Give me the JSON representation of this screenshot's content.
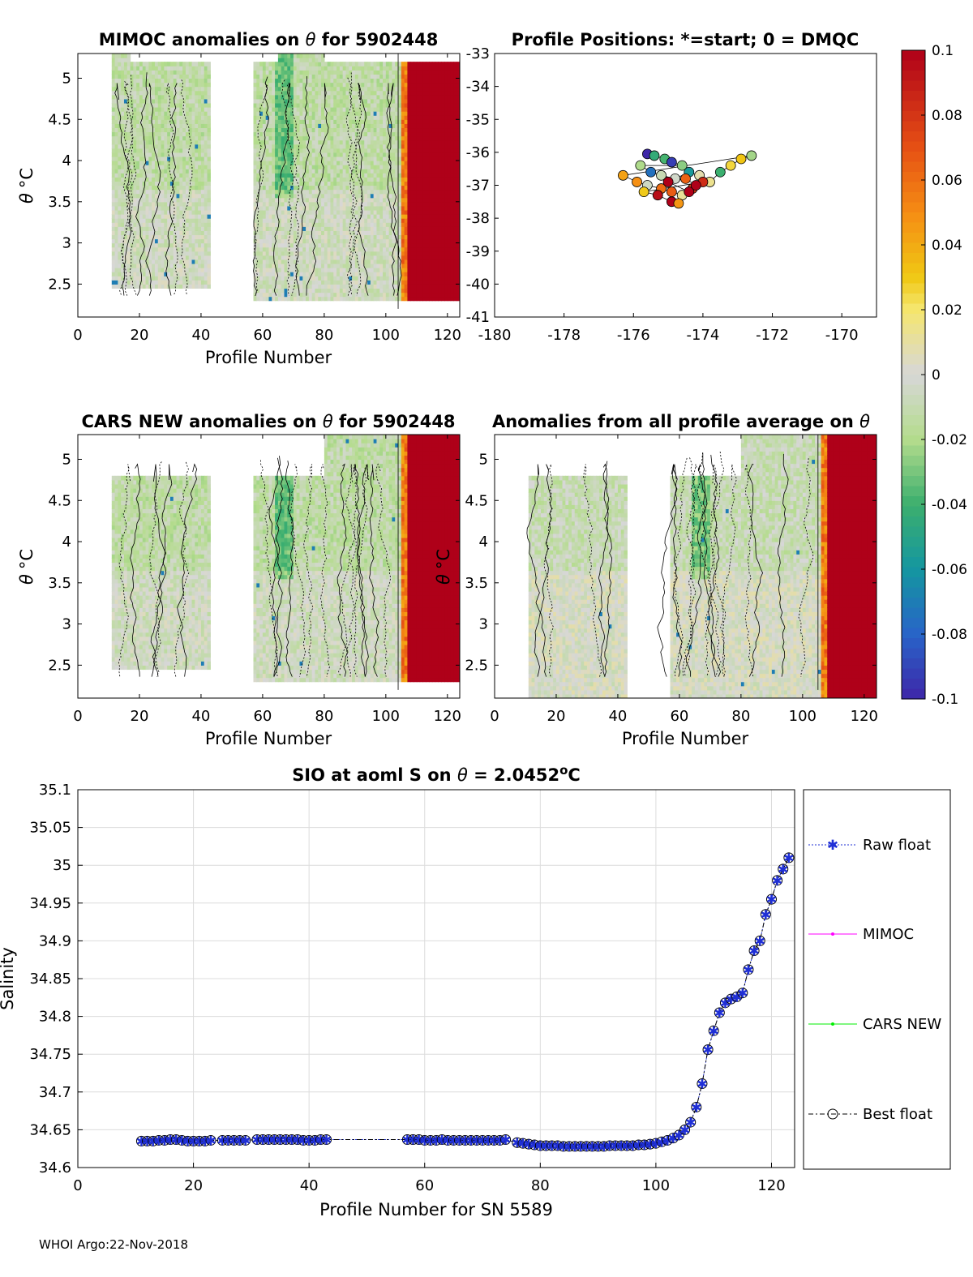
{
  "figure": {
    "footer": "WHOI Argo:22-Nov-2018",
    "colors": {
      "contour_line": "#000000",
      "raw_float": "#1f2fd6",
      "mimoc": "#ff00ff",
      "cars_new": "#00ee00",
      "best_float": "#000000",
      "grid": "#dcdcdc"
    }
  },
  "panels": {
    "mimoc": {
      "title_prefix": "MIMOC anomalies on ",
      "title_suffix": "  for 5902448",
      "xlabel": "Profile Number",
      "ylabel_theta": "θ",
      "ylabel_unit": "°C",
      "xticks": [
        "0",
        "20",
        "40",
        "60",
        "80",
        "100",
        "120"
      ],
      "yticks": [
        "5",
        "4.5",
        "4",
        "3.5",
        "3",
        "2.5"
      ]
    },
    "positions": {
      "title": "Profile Positions: *=start; 0 = DMQC",
      "xticks": [
        "-180",
        "-178",
        "-176",
        "-174",
        "-172",
        "-170"
      ],
      "yticks": [
        "-33",
        "-34",
        "-35",
        "-36",
        "-37",
        "-38",
        "-39",
        "-40",
        "-41"
      ]
    },
    "cars": {
      "title_prefix": "CARS NEW anomalies on ",
      "title_suffix": " for 5902448",
      "xlabel": "Profile Number",
      "ylabel_theta": "θ",
      "ylabel_unit": "°C",
      "xticks": [
        "0",
        "20",
        "40",
        "60",
        "80",
        "100",
        "120"
      ],
      "yticks": [
        "5",
        "4.5",
        "4",
        "3.5",
        "3",
        "2.5"
      ]
    },
    "allavg": {
      "title_prefix": "Anomalies from all profile average on ",
      "title_suffix": "",
      "xlabel": "Profile Number",
      "ylabel_theta": "θ",
      "ylabel_unit": "°C",
      "xticks": [
        "0",
        "20",
        "40",
        "60",
        "80",
        "100",
        "120"
      ],
      "yticks": [
        "5",
        "4.5",
        "4",
        "3.5",
        "3",
        "2.5"
      ]
    },
    "colorbar": {
      "ticks": [
        "0.1",
        "0.08",
        "0.06",
        "0.04",
        "0.02",
        "0",
        "-0.02",
        "-0.04",
        "-0.06",
        "-0.08",
        "-0.1"
      ]
    }
  },
  "chart_data": [
    {
      "type": "heatmap",
      "title": "MIMOC anomalies on θ  for 5902448",
      "xlabel": "Profile Number",
      "ylabel": "θ °C",
      "xlim": [
        0,
        124
      ],
      "ylim": [
        2.1,
        5.3
      ],
      "data_columns": [
        [
          11,
          43
        ],
        [
          57,
          124
        ]
      ],
      "strong_positive_from_profile": 107,
      "clim": [
        -0.1,
        0.1
      ]
    },
    {
      "type": "scatter",
      "title": "Profile Positions: *=start; 0 = DMQC",
      "xlim": [
        -180,
        -169
      ],
      "ylim": [
        -41,
        -33
      ],
      "points": [
        [
          -175.6,
          -36.05
        ],
        [
          -175.4,
          -36.1
        ],
        [
          -175.1,
          -36.2
        ],
        [
          -174.9,
          -36.3
        ],
        [
          -174.6,
          -36.4
        ],
        [
          -175.8,
          -36.4
        ],
        [
          -175.5,
          -36.6
        ],
        [
          -175.2,
          -36.7
        ],
        [
          -174.8,
          -36.8
        ],
        [
          -174.4,
          -36.6
        ],
        [
          -174.1,
          -36.7
        ],
        [
          -173.8,
          -36.9
        ],
        [
          -173.5,
          -36.6
        ],
        [
          -173.2,
          -36.4
        ],
        [
          -172.9,
          -36.2
        ],
        [
          -172.6,
          -36.1
        ],
        [
          -176.3,
          -36.7
        ],
        [
          -175.9,
          -36.9
        ],
        [
          -175.6,
          -37.0
        ],
        [
          -175.2,
          -37.1
        ],
        [
          -174.9,
          -37.2
        ],
        [
          -174.6,
          -37.3
        ],
        [
          -174.3,
          -37.1
        ],
        [
          -174.0,
          -36.9
        ],
        [
          -175.7,
          -37.2
        ],
        [
          -175.3,
          -37.3
        ],
        [
          -174.9,
          -37.5
        ],
        [
          -174.7,
          -37.55
        ],
        [
          -174.4,
          -37.2
        ],
        [
          -175.0,
          -36.9
        ],
        [
          -174.5,
          -36.8
        ],
        [
          -174.2,
          -37.0
        ]
      ]
    },
    {
      "type": "heatmap",
      "title": "CARS NEW anomalies on θ for 5902448",
      "xlabel": "Profile Number",
      "ylabel": "θ °C",
      "xlim": [
        0,
        124
      ],
      "ylim": [
        2.1,
        5.3
      ],
      "data_columns": [
        [
          11,
          43
        ],
        [
          57,
          124
        ]
      ],
      "strong_positive_from_profile": 107,
      "clim": [
        -0.1,
        0.1
      ]
    },
    {
      "type": "heatmap",
      "title": "Anomalies from all profile average on θ",
      "xlabel": "Profile Number",
      "ylabel": "θ °C",
      "xlim": [
        0,
        124
      ],
      "ylim": [
        2.1,
        5.3
      ],
      "data_columns": [
        [
          11,
          43
        ],
        [
          57,
          124
        ]
      ],
      "strong_positive_from_profile": 108,
      "clim": [
        -0.1,
        0.1
      ]
    },
    {
      "type": "line",
      "title": "SIO at aoml S on θ = 2.0452°C",
      "title_prefix": "SIO at aoml S on ",
      "title_mid": " = 2.0452",
      "title_unit": "C",
      "xlabel": "Profile Number for SN 5589",
      "ylabel": "Salinity",
      "xlim": [
        0,
        124
      ],
      "ylim": [
        34.6,
        35.1
      ],
      "xticks": [
        "0",
        "20",
        "40",
        "60",
        "80",
        "100",
        "120"
      ],
      "yticks": [
        "35.1",
        "35.05",
        "35",
        "34.95",
        "34.9",
        "34.85",
        "34.8",
        "34.75",
        "34.7",
        "34.65",
        "34.6"
      ],
      "legend": [
        "Raw float",
        "MIMOC",
        "CARS NEW",
        "Best float"
      ],
      "x": [
        11,
        12,
        13,
        14,
        15,
        16,
        17,
        18,
        19,
        20,
        21,
        22,
        23,
        25,
        26,
        27,
        28,
        29,
        31,
        32,
        33,
        34,
        35,
        36,
        37,
        38,
        39,
        40,
        41,
        42,
        43,
        57,
        58,
        59,
        60,
        61,
        62,
        63,
        64,
        65,
        66,
        67,
        68,
        69,
        70,
        71,
        72,
        73,
        74,
        76,
        77,
        78,
        79,
        80,
        81,
        82,
        83,
        84,
        85,
        86,
        87,
        88,
        89,
        90,
        91,
        92,
        93,
        94,
        95,
        96,
        97,
        98,
        99,
        100,
        101,
        102,
        103,
        104,
        105,
        106,
        107,
        108,
        109,
        110,
        111,
        112,
        113,
        114,
        115,
        116,
        117,
        118,
        119,
        120,
        121,
        122,
        123
      ],
      "series": [
        {
          "name": "Raw float",
          "values": [
            34.635,
            34.635,
            34.635,
            34.636,
            34.636,
            34.637,
            34.637,
            34.636,
            34.635,
            34.635,
            34.635,
            34.635,
            34.636,
            34.636,
            34.636,
            34.636,
            34.636,
            34.636,
            34.637,
            34.637,
            34.637,
            34.637,
            34.637,
            34.637,
            34.637,
            34.637,
            34.636,
            34.636,
            34.636,
            34.637,
            34.637,
            34.637,
            34.637,
            34.637,
            34.636,
            34.636,
            34.636,
            34.637,
            34.636,
            34.636,
            34.636,
            34.636,
            34.636,
            34.636,
            34.636,
            34.636,
            34.636,
            34.636,
            34.637,
            34.633,
            34.632,
            34.631,
            34.63,
            34.629,
            34.629,
            34.629,
            34.629,
            34.628,
            34.628,
            34.628,
            34.628,
            34.628,
            34.628,
            34.628,
            34.628,
            34.629,
            34.629,
            34.629,
            34.629,
            34.629,
            34.63,
            34.63,
            34.631,
            34.632,
            34.634,
            34.636,
            34.639,
            34.643,
            34.65,
            34.66,
            34.68,
            34.711,
            34.756,
            34.781,
            34.805,
            34.818,
            34.823,
            34.826,
            34.831,
            34.862,
            34.887,
            34.9,
            34.935,
            34.955,
            34.98,
            34.995,
            35.01
          ]
        },
        {
          "name": "Best float",
          "values": [
            34.635,
            34.635,
            34.635,
            34.636,
            34.636,
            34.637,
            34.637,
            34.636,
            34.635,
            34.635,
            34.635,
            34.635,
            34.636,
            34.636,
            34.636,
            34.636,
            34.636,
            34.636,
            34.637,
            34.637,
            34.637,
            34.637,
            34.637,
            34.637,
            34.637,
            34.637,
            34.636,
            34.636,
            34.636,
            34.637,
            34.637,
            34.637,
            34.637,
            34.637,
            34.636,
            34.636,
            34.636,
            34.637,
            34.636,
            34.636,
            34.636,
            34.636,
            34.636,
            34.636,
            34.636,
            34.636,
            34.636,
            34.636,
            34.637,
            34.633,
            34.632,
            34.631,
            34.63,
            34.629,
            34.629,
            34.629,
            34.629,
            34.628,
            34.628,
            34.628,
            34.628,
            34.628,
            34.628,
            34.628,
            34.628,
            34.629,
            34.629,
            34.629,
            34.629,
            34.629,
            34.63,
            34.63,
            34.631,
            34.632,
            34.634,
            34.636,
            34.639,
            34.643,
            34.65,
            34.66,
            34.68,
            34.711,
            34.756,
            34.781,
            34.805,
            34.818,
            34.823,
            34.826,
            34.831,
            34.862,
            34.887,
            34.9,
            34.935,
            34.955,
            34.98,
            34.995,
            35.01
          ]
        }
      ]
    }
  ]
}
